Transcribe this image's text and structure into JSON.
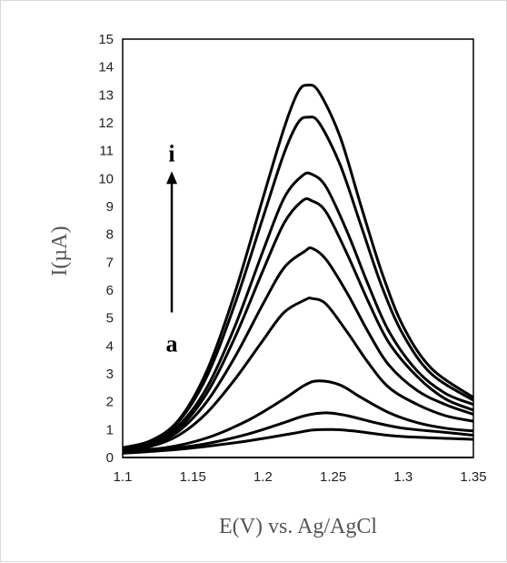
{
  "chart_data": {
    "type": "line",
    "title": "",
    "xlabel": "E(V) vs. Ag/AgCl",
    "ylabel": "I(µA)",
    "xlim": [
      1.1,
      1.35
    ],
    "ylim": [
      0,
      15
    ],
    "xticks": [
      "1.1",
      "1.15",
      "1.2",
      "1.25",
      "1.3",
      "1.35"
    ],
    "yticks": [
      "0",
      "1",
      "2",
      "3",
      "4",
      "5",
      "6",
      "7",
      "8",
      "9",
      "10",
      "11",
      "12",
      "13",
      "14",
      "15"
    ],
    "grid": false,
    "legend": "none",
    "line_color": "#000000",
    "annotation": {
      "top_label": "i",
      "bottom_label": "a",
      "arrow": "upward, from curve a to curve i",
      "arrow_x": 1.135,
      "arrow_y_range": [
        5.2,
        10.2
      ],
      "top_label_y": 10.9,
      "bottom_label_y": 4.1
    },
    "series": [
      {
        "values": [
          [
            1.1,
            0.15
          ],
          [
            1.13,
            0.25
          ],
          [
            1.16,
            0.4
          ],
          [
            1.19,
            0.6
          ],
          [
            1.22,
            0.85
          ],
          [
            1.235,
            0.98
          ],
          [
            1.25,
            1.0
          ],
          [
            1.265,
            0.95
          ],
          [
            1.28,
            0.85
          ],
          [
            1.3,
            0.75
          ],
          [
            1.35,
            0.65
          ]
        ]
      },
      {
        "values": [
          [
            1.1,
            0.2
          ],
          [
            1.13,
            0.3
          ],
          [
            1.16,
            0.5
          ],
          [
            1.19,
            0.85
          ],
          [
            1.215,
            1.25
          ],
          [
            1.23,
            1.5
          ],
          [
            1.245,
            1.6
          ],
          [
            1.26,
            1.5
          ],
          [
            1.28,
            1.25
          ],
          [
            1.3,
            1.05
          ],
          [
            1.33,
            0.9
          ],
          [
            1.35,
            0.8
          ]
        ]
      },
      {
        "values": [
          [
            1.1,
            0.25
          ],
          [
            1.13,
            0.35
          ],
          [
            1.16,
            0.7
          ],
          [
            1.19,
            1.35
          ],
          [
            1.215,
            2.1
          ],
          [
            1.23,
            2.6
          ],
          [
            1.24,
            2.75
          ],
          [
            1.255,
            2.6
          ],
          [
            1.27,
            2.15
          ],
          [
            1.29,
            1.6
          ],
          [
            1.31,
            1.25
          ],
          [
            1.33,
            1.05
          ],
          [
            1.35,
            0.95
          ]
        ]
      },
      {
        "values": [
          [
            1.1,
            0.3
          ],
          [
            1.12,
            0.4
          ],
          [
            1.14,
            0.8
          ],
          [
            1.16,
            1.6
          ],
          [
            1.18,
            2.8
          ],
          [
            1.2,
            4.2
          ],
          [
            1.215,
            5.2
          ],
          [
            1.23,
            5.65
          ],
          [
            1.235,
            5.7
          ],
          [
            1.245,
            5.5
          ],
          [
            1.26,
            4.5
          ],
          [
            1.275,
            3.4
          ],
          [
            1.29,
            2.5
          ],
          [
            1.31,
            1.9
          ],
          [
            1.33,
            1.5
          ],
          [
            1.35,
            1.3
          ]
        ]
      },
      {
        "values": [
          [
            1.1,
            0.3
          ],
          [
            1.12,
            0.45
          ],
          [
            1.14,
            0.95
          ],
          [
            1.16,
            2.0
          ],
          [
            1.18,
            3.6
          ],
          [
            1.2,
            5.5
          ],
          [
            1.215,
            6.8
          ],
          [
            1.23,
            7.4
          ],
          [
            1.235,
            7.5
          ],
          [
            1.245,
            7.1
          ],
          [
            1.26,
            5.9
          ],
          [
            1.275,
            4.5
          ],
          [
            1.29,
            3.3
          ],
          [
            1.31,
            2.4
          ],
          [
            1.33,
            1.9
          ],
          [
            1.35,
            1.55
          ]
        ]
      },
      {
        "values": [
          [
            1.1,
            0.3
          ],
          [
            1.12,
            0.5
          ],
          [
            1.14,
            1.05
          ],
          [
            1.16,
            2.3
          ],
          [
            1.18,
            4.3
          ],
          [
            1.2,
            6.7
          ],
          [
            1.215,
            8.4
          ],
          [
            1.228,
            9.2
          ],
          [
            1.235,
            9.2
          ],
          [
            1.245,
            8.8
          ],
          [
            1.26,
            7.3
          ],
          [
            1.275,
            5.6
          ],
          [
            1.29,
            4.1
          ],
          [
            1.31,
            2.9
          ],
          [
            1.33,
            2.1
          ],
          [
            1.35,
            1.7
          ]
        ]
      },
      {
        "values": [
          [
            1.1,
            0.35
          ],
          [
            1.12,
            0.55
          ],
          [
            1.14,
            1.15
          ],
          [
            1.16,
            2.5
          ],
          [
            1.18,
            4.7
          ],
          [
            1.2,
            7.4
          ],
          [
            1.215,
            9.3
          ],
          [
            1.228,
            10.1
          ],
          [
            1.235,
            10.15
          ],
          [
            1.245,
            9.7
          ],
          [
            1.26,
            8.1
          ],
          [
            1.275,
            6.2
          ],
          [
            1.29,
            4.5
          ],
          [
            1.31,
            3.1
          ],
          [
            1.33,
            2.3
          ],
          [
            1.35,
            1.9
          ]
        ]
      },
      {
        "values": [
          [
            1.1,
            0.35
          ],
          [
            1.12,
            0.6
          ],
          [
            1.14,
            1.3
          ],
          [
            1.16,
            2.9
          ],
          [
            1.18,
            5.5
          ],
          [
            1.2,
            8.6
          ],
          [
            1.215,
            10.9
          ],
          [
            1.225,
            12.0
          ],
          [
            1.232,
            12.2
          ],
          [
            1.24,
            12.0
          ],
          [
            1.255,
            10.5
          ],
          [
            1.27,
            8.3
          ],
          [
            1.285,
            6.1
          ],
          [
            1.3,
            4.4
          ],
          [
            1.32,
            3.0
          ],
          [
            1.35,
            2.05
          ]
        ]
      },
      {
        "values": [
          [
            1.1,
            0.35
          ],
          [
            1.12,
            0.6
          ],
          [
            1.14,
            1.35
          ],
          [
            1.16,
            3.1
          ],
          [
            1.18,
            5.9
          ],
          [
            1.2,
            9.3
          ],
          [
            1.215,
            11.8
          ],
          [
            1.225,
            13.1
          ],
          [
            1.232,
            13.35
          ],
          [
            1.24,
            13.1
          ],
          [
            1.255,
            11.5
          ],
          [
            1.27,
            9.0
          ],
          [
            1.285,
            6.6
          ],
          [
            1.3,
            4.7
          ],
          [
            1.32,
            3.2
          ],
          [
            1.35,
            2.15
          ]
        ]
      }
    ]
  }
}
